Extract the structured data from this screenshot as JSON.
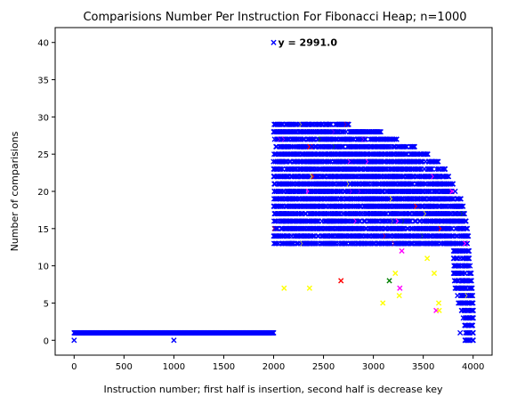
{
  "chart_data": {
    "type": "scatter",
    "title": "Comparisions Number Per Instruction For Fibonacci Heap; n=1000",
    "xlabel": "Instruction number; first half is insertion, second half is decrease key",
    "ylabel": "Number of comparisions",
    "xlim": [
      -190,
      4190
    ],
    "ylim": [
      -2,
      42
    ],
    "xticks": [
      0,
      500,
      1000,
      1500,
      2000,
      2500,
      3000,
      3500,
      4000
    ],
    "yticks": [
      0,
      5,
      10,
      15,
      20,
      25,
      30,
      35,
      40
    ],
    "marker": "x",
    "grid": false,
    "colors": {
      "main": "#0000ff",
      "accents": [
        "#ff0000",
        "#008000",
        "#ff00ff",
        "#ffff00"
      ]
    },
    "insertion_phase": {
      "x_range": [
        0,
        2000
      ],
      "y": 1,
      "outliers": [
        {
          "x": 0,
          "y": 0
        },
        {
          "x": 1000,
          "y": 0
        }
      ]
    },
    "decrease_key_phase": {
      "x_range": [
        2000,
        4000
      ],
      "max_y_by_x": [
        [
          2000,
          29
        ],
        [
          2500,
          29
        ],
        [
          3000,
          28
        ],
        [
          3500,
          25
        ],
        [
          3700,
          23
        ],
        [
          3900,
          18
        ],
        [
          3950,
          14
        ],
        [
          4000,
          5
        ]
      ],
      "min_typical_y": 7
    },
    "annotation": {
      "x": 2000,
      "y": 40,
      "text": "y = 2991.0"
    }
  }
}
